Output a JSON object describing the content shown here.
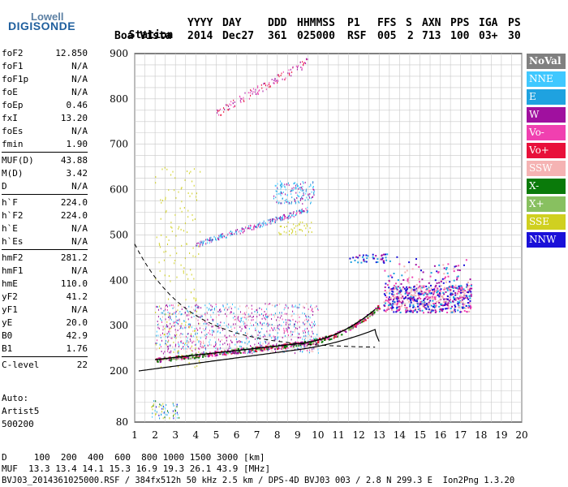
{
  "logo": {
    "top": "Lowell",
    "main": "DIGISONDE"
  },
  "header": {
    "labels": [
      "Station",
      "YYYY",
      "DAY",
      "DDD",
      "HHMMSS",
      "P1",
      "FFS",
      "S",
      "AXN",
      "PPS",
      "IGA",
      "PS"
    ],
    "values": [
      "Boa Vista",
      "2014",
      "Dec27",
      "361",
      "025000",
      "RSF",
      "005",
      "2",
      "713",
      "100",
      "03+",
      "30"
    ]
  },
  "params": [
    [
      {
        "n": "foF2",
        "v": "12.850"
      },
      {
        "n": "foF1",
        "v": "N/A"
      },
      {
        "n": "foF1p",
        "v": "N/A"
      },
      {
        "n": "foE",
        "v": "N/A"
      },
      {
        "n": "foEp",
        "v": "0.46"
      },
      {
        "n": "fxI",
        "v": "13.20"
      },
      {
        "n": "foEs",
        "v": "N/A"
      },
      {
        "n": "fmin",
        "v": "1.90"
      }
    ],
    [
      {
        "n": "MUF(D)",
        "v": "43.88"
      },
      {
        "n": "M(D)",
        "v": "3.42"
      },
      {
        "n": "D",
        "v": "N/A"
      }
    ],
    [
      {
        "n": "h`F",
        "v": "224.0"
      },
      {
        "n": "h`F2",
        "v": "224.0"
      },
      {
        "n": "h`E",
        "v": "N/A"
      },
      {
        "n": "h`Es",
        "v": "N/A"
      }
    ],
    [
      {
        "n": "hmF2",
        "v": "281.2"
      },
      {
        "n": "hmF1",
        "v": "N/A"
      },
      {
        "n": "hmE",
        "v": "110.0"
      },
      {
        "n": "yF2",
        "v": "41.2"
      },
      {
        "n": "yF1",
        "v": "N/A"
      },
      {
        "n": "yE",
        "v": "20.0"
      },
      {
        "n": "B0",
        "v": "42.9"
      },
      {
        "n": "B1",
        "v": "1.76"
      }
    ],
    [
      {
        "n": "C-level",
        "v": "22"
      }
    ]
  ],
  "auto": {
    "l1": "Auto:",
    "l2": "Artist5",
    "l3": "500200"
  },
  "legend": [
    {
      "label": "NoVal",
      "color": "#808080"
    },
    {
      "label": "NNE",
      "color": "#40c8ff"
    },
    {
      "label": "E",
      "color": "#1fa2e0"
    },
    {
      "label": "W",
      "color": "#a0109f"
    },
    {
      "label": "Vo-",
      "color": "#f040b0"
    },
    {
      "label": "Vo+",
      "color": "#e8103a"
    },
    {
      "label": "SSW",
      "color": "#f5b3b3"
    },
    {
      "label": "X-",
      "color": "#0a7a0a"
    },
    {
      "label": "X+",
      "color": "#88c060"
    },
    {
      "label": "SSE",
      "color": "#d0d020"
    },
    {
      "label": "NNW",
      "color": "#1a10d8"
    }
  ],
  "chart_data": {
    "type": "scatter",
    "xticks": [
      "1",
      "2",
      "3",
      "4",
      "5",
      "6",
      "7",
      "8",
      "9",
      "10",
      "11",
      "12",
      "13",
      "14",
      "15",
      "16",
      "17",
      "18",
      "19",
      "20"
    ],
    "yticks": [
      "900",
      "800",
      "700",
      "600",
      "500",
      "400",
      "300",
      "200",
      "80"
    ],
    "xlim": [
      1,
      20
    ],
    "ylim": [
      80,
      900
    ],
    "grid": true
  },
  "bottom": {
    "d_row": "D     100  200  400  600  800 1000 1500 3000 [km]",
    "muf_row": "MUF  13.3 13.4 14.1 15.3 16.9 19.3 26.1 43.9 [MHz]",
    "file_row": "BVJ03_2014361025000.RSF / 384fx512h 50 kHz 2.5 km / DPS-4D BVJ03 003 / 2.8 N 299.3 E  Ion2Png 1.3.20"
  }
}
